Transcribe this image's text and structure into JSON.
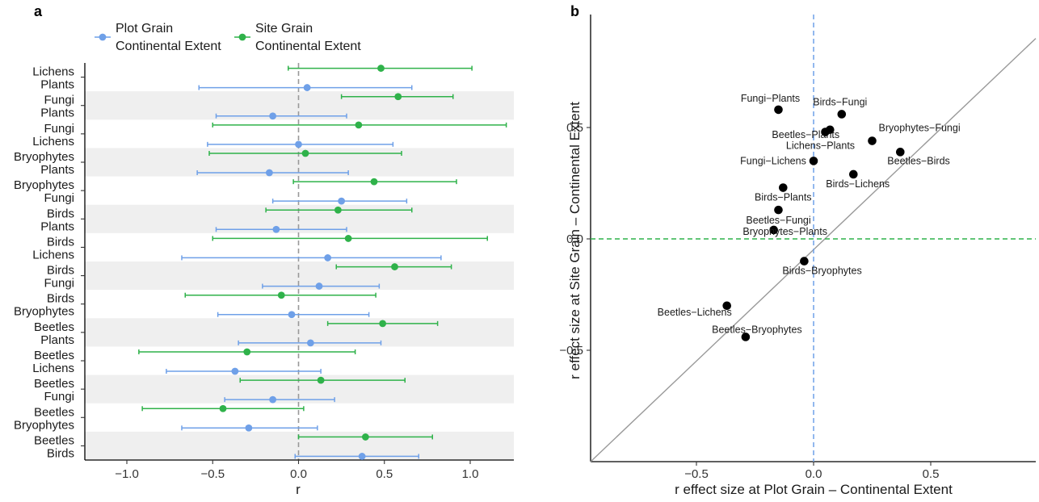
{
  "chart_data": [
    {
      "panel_label": "a",
      "type": "scatter",
      "subtype": "forest-plot",
      "xlabel": "r",
      "ylabel": "",
      "xlim": [
        -1.25,
        1.25
      ],
      "xticks": [
        "-1.0",
        "-0.5",
        "0.0",
        "0.5",
        "1.0"
      ],
      "xtick_values": [
        -1.0,
        -0.5,
        0.0,
        0.5,
        1.0
      ],
      "reference_line": 0,
      "alternating_row_shading": true,
      "legend": {
        "position": "top-left",
        "items": [
          {
            "line1": "Plot Grain",
            "line2": "Continental Extent",
            "color": "#6fa0e8"
          },
          {
            "line1": "Site Grain",
            "line2": "Continental Extent",
            "color": "#2fb24a"
          }
        ]
      },
      "categories": [
        {
          "line1": "Lichens",
          "line2": "Plants"
        },
        {
          "line1": "Fungi",
          "line2": "Plants"
        },
        {
          "line1": "Fungi",
          "line2": "Lichens"
        },
        {
          "line1": "Bryophytes",
          "line2": "Plants"
        },
        {
          "line1": "Bryophytes",
          "line2": "Fungi"
        },
        {
          "line1": "Birds",
          "line2": "Plants"
        },
        {
          "line1": "Birds",
          "line2": "Lichens"
        },
        {
          "line1": "Birds",
          "line2": "Fungi"
        },
        {
          "line1": "Birds",
          "line2": "Bryophytes"
        },
        {
          "line1": "Beetles",
          "line2": "Plants"
        },
        {
          "line1": "Beetles",
          "line2": "Lichens"
        },
        {
          "line1": "Beetles",
          "line2": "Fungi"
        },
        {
          "line1": "Beetles",
          "line2": "Bryophytes"
        },
        {
          "line1": "Beetles",
          "line2": "Birds"
        }
      ],
      "series": [
        {
          "name": "Plot Grain Continental Extent",
          "color": "#6fa0e8",
          "values": [
            0.05,
            -0.15,
            0.0,
            -0.17,
            0.25,
            -0.13,
            0.17,
            0.12,
            -0.04,
            0.07,
            -0.37,
            -0.15,
            -0.29,
            0.37
          ],
          "lower": [
            -0.58,
            -0.48,
            -0.53,
            -0.59,
            -0.15,
            -0.48,
            -0.68,
            -0.21,
            -0.47,
            -0.35,
            -0.77,
            -0.43,
            -0.68,
            -0.02
          ],
          "upper": [
            0.66,
            0.28,
            0.55,
            0.29,
            0.63,
            0.28,
            0.83,
            0.47,
            0.41,
            0.48,
            0.13,
            0.21,
            0.11,
            0.7
          ]
        },
        {
          "name": "Site Grain Continental Extent",
          "color": "#2fb24a",
          "values": [
            0.48,
            0.58,
            0.35,
            0.04,
            0.44,
            0.23,
            0.29,
            0.56,
            -0.1,
            0.49,
            -0.3,
            0.13,
            -0.44,
            0.39
          ],
          "lower": [
            -0.06,
            0.25,
            -0.5,
            -0.52,
            -0.03,
            -0.19,
            -0.5,
            0.22,
            -0.66,
            0.17,
            -0.93,
            -0.34,
            -0.91,
            0.0
          ],
          "upper": [
            1.01,
            0.9,
            1.21,
            0.6,
            0.92,
            0.66,
            1.1,
            0.89,
            0.45,
            0.81,
            0.33,
            0.62,
            0.03,
            0.78
          ]
        }
      ]
    },
    {
      "panel_label": "b",
      "type": "scatter",
      "xlabel": "r effect size at Plot Grain – Continental Extent",
      "ylabel": "r effect size at Site Grain – Continental Extent",
      "xlim": [
        -1.0,
        1.0
      ],
      "ylim": [
        -1.0,
        1.0
      ],
      "xticks": [
        "-0.5",
        "0.0",
        "0.5"
      ],
      "xtick_values": [
        -0.5,
        0.0,
        0.5
      ],
      "yticks": [
        "-0.5",
        "0.0",
        "0.5"
      ],
      "ytick_values": [
        -0.5,
        0.0,
        0.5
      ],
      "reference_lines": {
        "vertical_x0": "#6fa0e8",
        "horizontal_y0": "#2fb24a",
        "identity": "#999999"
      },
      "points": [
        {
          "label": "Fungi-Plants",
          "x": -0.15,
          "y": 0.58
        },
        {
          "label": "Birds-Fungi",
          "x": 0.12,
          "y": 0.56
        },
        {
          "label": "Beetles-Plants",
          "x": 0.07,
          "y": 0.49
        },
        {
          "label": "Lichens-Plants",
          "x": 0.05,
          "y": 0.48
        },
        {
          "label": "Bryophytes-Fungi",
          "x": 0.25,
          "y": 0.44
        },
        {
          "label": "Beetles-Birds",
          "x": 0.37,
          "y": 0.39
        },
        {
          "label": "Fungi-Lichens",
          "x": 0.0,
          "y": 0.35
        },
        {
          "label": "Birds-Lichens",
          "x": 0.17,
          "y": 0.29
        },
        {
          "label": "Birds-Plants",
          "x": -0.13,
          "y": 0.23
        },
        {
          "label": "Beetles-Fungi",
          "x": -0.15,
          "y": 0.13
        },
        {
          "label": "Bryophytes-Plants",
          "x": -0.17,
          "y": 0.04
        },
        {
          "label": "Birds-Bryophytes",
          "x": -0.04,
          "y": -0.1
        },
        {
          "label": "Beetles-Lichens",
          "x": -0.37,
          "y": -0.3
        },
        {
          "label": "Beetles-Bryophytes",
          "x": -0.29,
          "y": -0.44
        }
      ]
    }
  ]
}
